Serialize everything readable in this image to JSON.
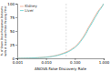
{
  "chart_data": {
    "type": "line",
    "xlabel": "ANOVA False Discovery Rate",
    "ylabel": "% of Sham Dose Response Datasets\nwith at least one Probe Passing Filter",
    "x": [
      0.001,
      0.0013,
      0.0016,
      0.002,
      0.0025,
      0.003,
      0.004,
      0.005,
      0.006,
      0.008,
      0.01,
      0.013,
      0.016,
      0.02,
      0.025,
      0.03,
      0.04,
      0.05,
      0.06,
      0.07,
      0.08,
      0.1,
      0.13,
      0.16,
      0.2,
      0.25,
      0.3,
      0.4,
      0.5,
      0.6,
      0.7,
      0.8,
      0.9,
      1.0
    ],
    "series": [
      {
        "name": "Kidney",
        "color": "#F4A58A",
        "values": [
          0.2,
          0.3,
          0.4,
          0.5,
          0.6,
          0.7,
          0.9,
          1.1,
          1.4,
          1.8,
          2.3,
          3.0,
          3.8,
          4.8,
          6.0,
          7.2,
          9.5,
          11.5,
          13.5,
          15.5,
          17.5,
          21,
          27,
          33,
          40,
          49,
          57,
          68,
          77,
          84,
          89,
          93,
          96,
          100
        ]
      },
      {
        "name": "Liver",
        "color": "#5ECFCF",
        "values": [
          0.1,
          0.2,
          0.3,
          0.4,
          0.5,
          0.6,
          0.8,
          1.0,
          1.2,
          1.6,
          2.0,
          2.6,
          3.3,
          4.2,
          5.3,
          6.4,
          8.5,
          10.3,
          12.2,
          14.0,
          16.0,
          19.5,
          25,
          31,
          38,
          46,
          54,
          65,
          74,
          81,
          87,
          91,
          95,
          100
        ]
      }
    ],
    "xlim": [
      0.001,
      1.0
    ],
    "ylim": [
      0,
      100
    ],
    "xticks": [
      0.001,
      {
        "value": 0.01,
        "label": "0.010"
      },
      {
        "value": 0.1,
        "label": "0.100"
      },
      {
        "value": 1.0,
        "label": "1.000"
      }
    ],
    "yticks": [
      0,
      25,
      50,
      75,
      100
    ],
    "log": "x",
    "legend": "upper-left",
    "vline": {
      "x": 0.05,
      "color": "#BBBBBB",
      "line_style": "dashed"
    }
  }
}
